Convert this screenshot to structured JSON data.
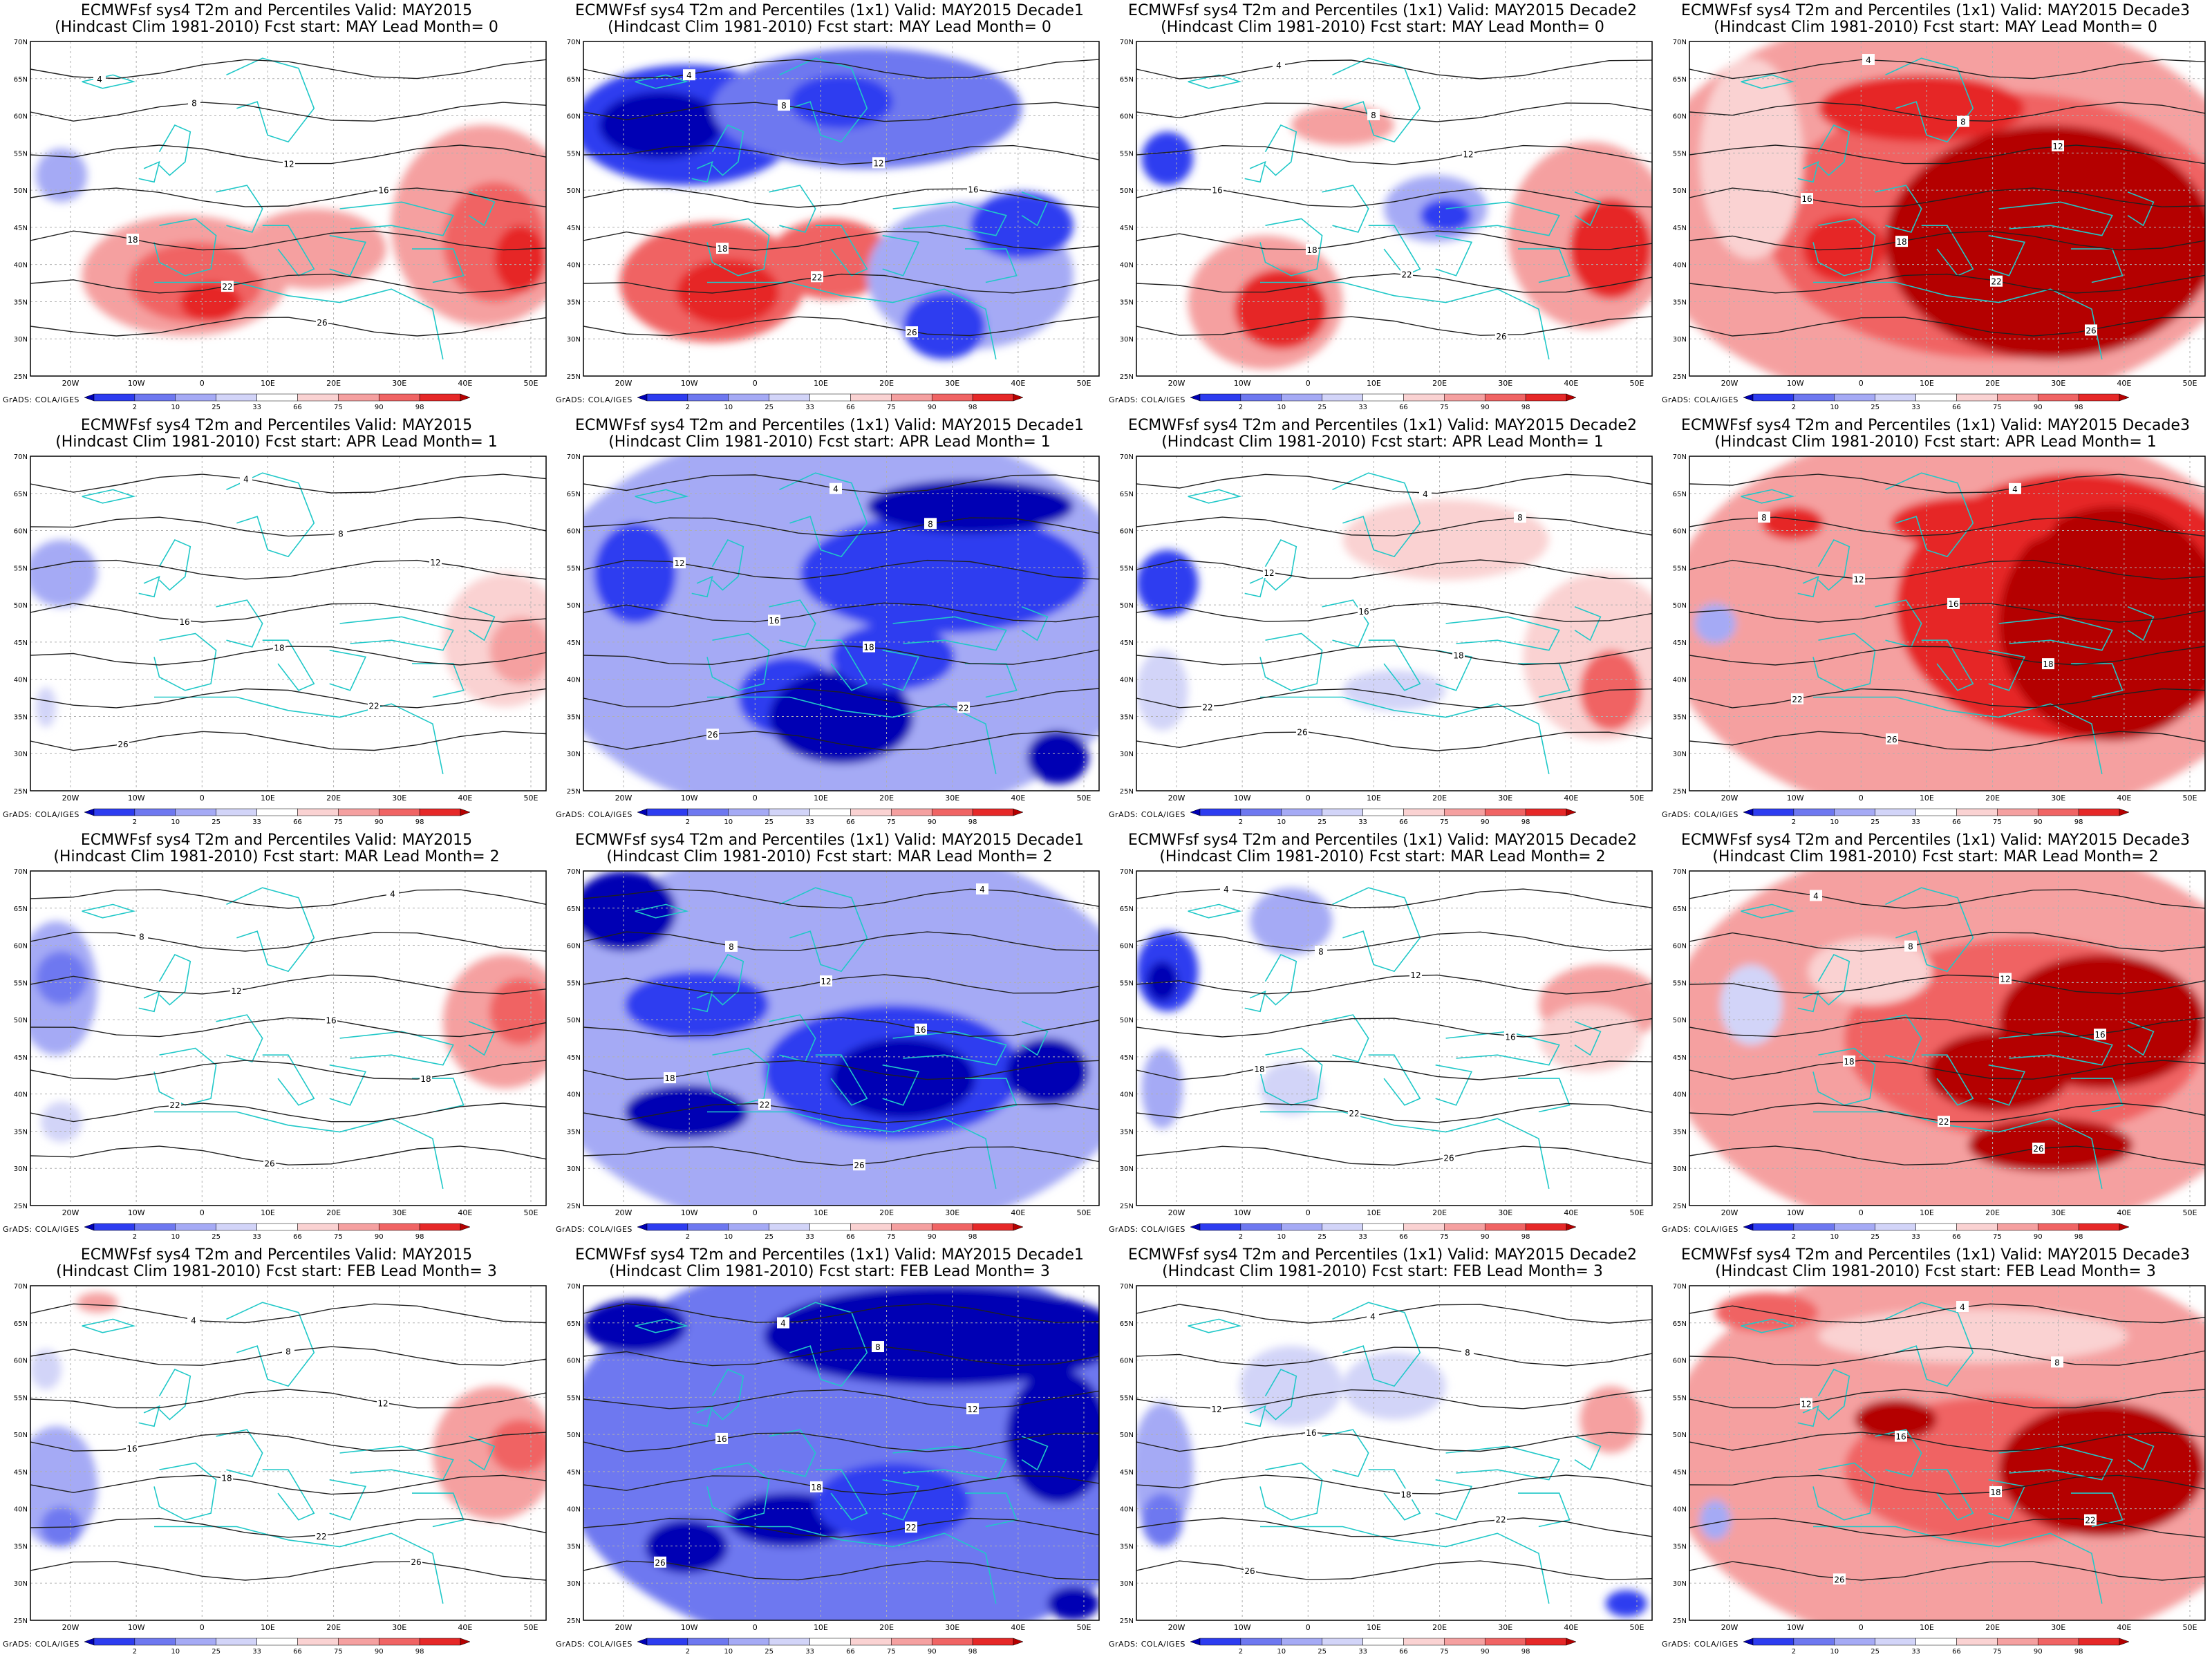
{
  "lat_labels": [
    "70N",
    "65N",
    "60N",
    "55N",
    "50N",
    "45N",
    "40N",
    "35N",
    "30N",
    "25N"
  ],
  "lon_labels": [
    "20W",
    "10W",
    "0",
    "10E",
    "20E",
    "30E",
    "40E",
    "50E"
  ],
  "legend_labels": [
    "2",
    "10",
    "25",
    "33",
    "66",
    "75",
    "90",
    "98"
  ],
  "legend_colors": [
    "#0000b4",
    "#2d3cf0",
    "#6e78f0",
    "#a5aaf5",
    "#d2d4f8",
    "#ffffff",
    "#fad2d2",
    "#f5a0a0",
    "#f06464",
    "#e62828",
    "#b40000"
  ],
  "credit": "GrADS: COLA/IGES",
  "panels": [
    {
      "title1": "ECMWFsf sys4  T2m and Percentiles Valid: MAY2015",
      "title2": "(Hindcast Clim 1981-2010) Fcst start: MAY  Lead Month= 0"
    },
    {
      "title1": "ECMWFsf sys4  T2m and Percentiles (1x1) Valid: MAY2015 Decade1",
      "title2": "(Hindcast Clim 1981-2010) Fcst start: MAY  Lead Month= 0"
    },
    {
      "title1": "ECMWFsf sys4  T2m and Percentiles (1x1) Valid: MAY2015 Decade2",
      "title2": "(Hindcast Clim 1981-2010) Fcst start: MAY  Lead Month= 0"
    },
    {
      "title1": "ECMWFsf sys4  T2m and Percentiles (1x1) Valid: MAY2015 Decade3",
      "title2": "(Hindcast Clim 1981-2010) Fcst start: MAY  Lead Month= 0"
    },
    {
      "title1": "ECMWFsf sys4  T2m and Percentiles Valid: MAY2015",
      "title2": "(Hindcast Clim 1981-2010) Fcst start: APR  Lead Month= 1"
    },
    {
      "title1": "ECMWFsf sys4  T2m and Percentiles (1x1) Valid: MAY2015 Decade1",
      "title2": "(Hindcast Clim 1981-2010) Fcst start: APR  Lead Month= 1"
    },
    {
      "title1": "ECMWFsf sys4  T2m and Percentiles (1x1) Valid: MAY2015 Decade2",
      "title2": "(Hindcast Clim 1981-2010) Fcst start: APR  Lead Month= 1"
    },
    {
      "title1": "ECMWFsf sys4  T2m and Percentiles (1x1) Valid: MAY2015 Decade3",
      "title2": "(Hindcast Clim 1981-2010) Fcst start: APR  Lead Month= 1"
    },
    {
      "title1": "ECMWFsf sys4  T2m and Percentiles Valid: MAY2015",
      "title2": "(Hindcast Clim 1981-2010) Fcst start: MAR  Lead Month= 2"
    },
    {
      "title1": "ECMWFsf sys4  T2m and Percentiles (1x1) Valid: MAY2015 Decade1",
      "title2": "(Hindcast Clim 1981-2010) Fcst start: MAR  Lead Month= 2"
    },
    {
      "title1": "ECMWFsf sys4  T2m and Percentiles (1x1) Valid: MAY2015 Decade2",
      "title2": "(Hindcast Clim 1981-2010) Fcst start: MAR  Lead Month= 2"
    },
    {
      "title1": "ECMWFsf sys4  T2m and Percentiles (1x1) Valid: MAY2015 Decade3",
      "title2": "(Hindcast Clim 1981-2010) Fcst start: MAR  Lead Month= 2"
    },
    {
      "title1": "ECMWFsf sys4  T2m and Percentiles Valid: MAY2015",
      "title2": "(Hindcast Clim 1981-2010) Fcst start: FEB  Lead Month= 3"
    },
    {
      "title1": "ECMWFsf sys4  T2m and Percentiles (1x1) Valid: MAY2015 Decade1",
      "title2": "(Hindcast Clim 1981-2010) Fcst start: FEB  Lead Month= 3"
    },
    {
      "title1": "ECMWFsf sys4  T2m and Percentiles (1x1) Valid: MAY2015 Decade2",
      "title2": "(Hindcast Clim 1981-2010) Fcst start: FEB  Lead Month= 3"
    },
    {
      "title1": "ECMWFsf sys4  T2m and Percentiles (1x1) Valid: MAY2015 Decade3",
      "title2": "(Hindcast Clim 1981-2010) Fcst start: FEB  Lead Month= 3"
    }
  ]
}
